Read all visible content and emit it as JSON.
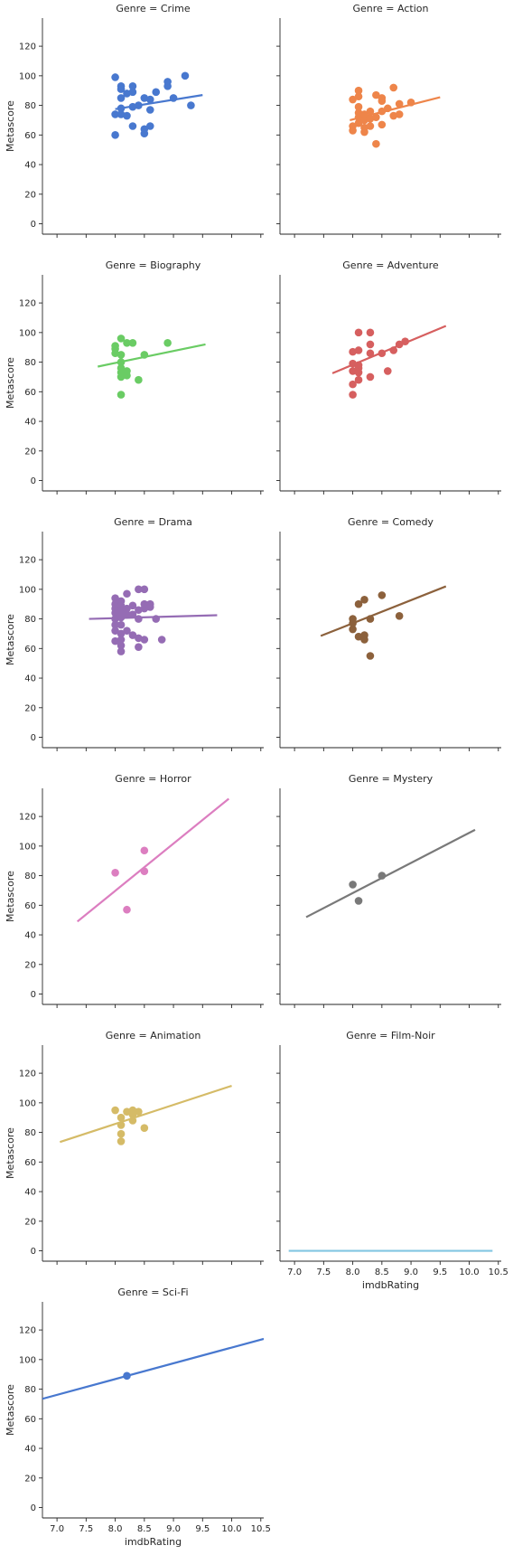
{
  "chart_data": {
    "type": "scatter",
    "title": "",
    "xlabel": "imdbRating",
    "ylabel": "Metascore",
    "xlim": [
      6.75,
      10.55
    ],
    "ylim": [
      -7,
      139
    ],
    "xticks": [
      "7.0",
      "7.5",
      "8.0",
      "8.5",
      "9.0",
      "9.5",
      "10.0",
      "10.5"
    ],
    "yticks": [
      "0",
      "20",
      "40",
      "60",
      "80",
      "100",
      "120"
    ],
    "grid": false,
    "panels": [
      {
        "title": "Genre = Crime",
        "genre": "Crime",
        "color": "#4878cf",
        "points": [
          [
            8.0,
            99
          ],
          [
            8.0,
            60
          ],
          [
            8.0,
            74
          ],
          [
            8.1,
            93
          ],
          [
            8.1,
            91
          ],
          [
            8.1,
            85
          ],
          [
            8.1,
            74
          ],
          [
            8.1,
            78
          ],
          [
            8.2,
            73
          ],
          [
            8.2,
            88
          ],
          [
            8.3,
            93
          ],
          [
            8.3,
            89
          ],
          [
            8.3,
            79
          ],
          [
            8.3,
            66
          ],
          [
            8.4,
            80
          ],
          [
            8.5,
            85
          ],
          [
            8.5,
            61
          ],
          [
            8.5,
            64
          ],
          [
            8.6,
            84
          ],
          [
            8.6,
            77
          ],
          [
            8.6,
            66
          ],
          [
            8.7,
            89
          ],
          [
            8.9,
            96
          ],
          [
            8.9,
            93
          ],
          [
            9.0,
            85
          ],
          [
            9.2,
            100
          ],
          [
            9.3,
            80
          ]
        ],
        "fit": [
          [
            8.0,
            77.5
          ],
          [
            9.5,
            87
          ]
        ]
      },
      {
        "title": "Genre = Action",
        "genre": "Action",
        "color": "#ee854a",
        "points": [
          [
            8.0,
            84
          ],
          [
            8.0,
            66
          ],
          [
            8.0,
            63
          ],
          [
            8.1,
            90
          ],
          [
            8.1,
            86
          ],
          [
            8.1,
            79
          ],
          [
            8.1,
            75
          ],
          [
            8.1,
            72
          ],
          [
            8.1,
            68
          ],
          [
            8.2,
            74
          ],
          [
            8.2,
            70
          ],
          [
            8.2,
            65
          ],
          [
            8.2,
            62
          ],
          [
            8.3,
            76
          ],
          [
            8.3,
            71
          ],
          [
            8.3,
            66
          ],
          [
            8.4,
            87
          ],
          [
            8.4,
            72
          ],
          [
            8.4,
            54
          ],
          [
            8.5,
            85
          ],
          [
            8.5,
            83
          ],
          [
            8.5,
            76
          ],
          [
            8.5,
            67
          ],
          [
            8.6,
            78
          ],
          [
            8.7,
            92
          ],
          [
            8.7,
            73
          ],
          [
            8.8,
            81
          ],
          [
            8.8,
            74
          ],
          [
            9.0,
            82
          ]
        ],
        "fit": [
          [
            7.95,
            70
          ],
          [
            9.5,
            85.5
          ]
        ]
      },
      {
        "title": "Genre = Biography",
        "genre": "Biography",
        "color": "#6acc64",
        "points": [
          [
            8.0,
            91
          ],
          [
            8.0,
            89
          ],
          [
            8.0,
            86
          ],
          [
            8.1,
            96
          ],
          [
            8.1,
            85
          ],
          [
            8.1,
            80
          ],
          [
            8.1,
            76
          ],
          [
            8.1,
            73
          ],
          [
            8.1,
            70
          ],
          [
            8.1,
            58
          ],
          [
            8.2,
            93
          ],
          [
            8.2,
            74
          ],
          [
            8.2,
            71
          ],
          [
            8.3,
            93
          ],
          [
            8.4,
            68
          ],
          [
            8.5,
            85
          ],
          [
            8.9,
            93
          ]
        ],
        "fit": [
          [
            7.7,
            77
          ],
          [
            9.55,
            92
          ]
        ]
      },
      {
        "title": "Genre = Adventure",
        "genre": "Adventure",
        "color": "#d65f5f",
        "points": [
          [
            8.0,
            87
          ],
          [
            8.0,
            79
          ],
          [
            8.0,
            74
          ],
          [
            8.0,
            65
          ],
          [
            8.0,
            58
          ],
          [
            8.1,
            100
          ],
          [
            8.1,
            88
          ],
          [
            8.1,
            78
          ],
          [
            8.1,
            76
          ],
          [
            8.1,
            73
          ],
          [
            8.1,
            68
          ],
          [
            8.3,
            100
          ],
          [
            8.3,
            92
          ],
          [
            8.3,
            86
          ],
          [
            8.3,
            70
          ],
          [
            8.5,
            86
          ],
          [
            8.6,
            74
          ],
          [
            8.7,
            88
          ],
          [
            8.8,
            92
          ],
          [
            8.9,
            94
          ]
        ],
        "fit": [
          [
            7.65,
            72.5
          ],
          [
            9.6,
            104.5
          ]
        ]
      },
      {
        "title": "Genre = Drama",
        "genre": "Drama",
        "color": "#956cb4",
        "points": [
          [
            8.0,
            94
          ],
          [
            8.0,
            90
          ],
          [
            8.0,
            87
          ],
          [
            8.0,
            84
          ],
          [
            8.0,
            80
          ],
          [
            8.0,
            76
          ],
          [
            8.0,
            72
          ],
          [
            8.0,
            65
          ],
          [
            8.1,
            92
          ],
          [
            8.1,
            89
          ],
          [
            8.1,
            85
          ],
          [
            8.1,
            81
          ],
          [
            8.1,
            76
          ],
          [
            8.1,
            70
          ],
          [
            8.1,
            66
          ],
          [
            8.1,
            62
          ],
          [
            8.1,
            58
          ],
          [
            8.2,
            97
          ],
          [
            8.2,
            87
          ],
          [
            8.2,
            83
          ],
          [
            8.2,
            72
          ],
          [
            8.3,
            89
          ],
          [
            8.3,
            83
          ],
          [
            8.3,
            69
          ],
          [
            8.4,
            100
          ],
          [
            8.4,
            86
          ],
          [
            8.4,
            80
          ],
          [
            8.4,
            67
          ],
          [
            8.4,
            61
          ],
          [
            8.5,
            100
          ],
          [
            8.5,
            90
          ],
          [
            8.5,
            87
          ],
          [
            8.5,
            66
          ],
          [
            8.6,
            90
          ],
          [
            8.6,
            88
          ],
          [
            8.7,
            80
          ],
          [
            8.8,
            66
          ]
        ],
        "fit": [
          [
            7.55,
            80
          ],
          [
            9.75,
            82.5
          ]
        ]
      },
      {
        "title": "Genre = Comedy",
        "genre": "Comedy",
        "color": "#8c613c",
        "points": [
          [
            8.0,
            80
          ],
          [
            8.0,
            77
          ],
          [
            8.0,
            73
          ],
          [
            8.1,
            90
          ],
          [
            8.1,
            68
          ],
          [
            8.2,
            93
          ],
          [
            8.2,
            69
          ],
          [
            8.2,
            66
          ],
          [
            8.3,
            80
          ],
          [
            8.3,
            55
          ],
          [
            8.5,
            96
          ],
          [
            8.8,
            82
          ]
        ],
        "fit": [
          [
            7.45,
            68.5
          ],
          [
            9.6,
            102
          ]
        ]
      },
      {
        "title": "Genre = Horror",
        "genre": "Horror",
        "color": "#dc7ec0",
        "points": [
          [
            8.0,
            82
          ],
          [
            8.2,
            57
          ],
          [
            8.5,
            97
          ],
          [
            8.5,
            83
          ]
        ],
        "fit": [
          [
            7.35,
            49
          ],
          [
            9.95,
            132
          ]
        ]
      },
      {
        "title": "Genre = Mystery",
        "genre": "Mystery",
        "color": "#797979",
        "points": [
          [
            8.0,
            74
          ],
          [
            8.1,
            63
          ],
          [
            8.5,
            80
          ]
        ],
        "fit": [
          [
            7.2,
            52
          ],
          [
            10.1,
            111
          ]
        ]
      },
      {
        "title": "Genre = Animation",
        "genre": "Animation",
        "color": "#d5bb67",
        "points": [
          [
            8.0,
            95
          ],
          [
            8.1,
            90
          ],
          [
            8.1,
            85
          ],
          [
            8.1,
            79
          ],
          [
            8.1,
            74
          ],
          [
            8.2,
            94
          ],
          [
            8.3,
            95
          ],
          [
            8.3,
            92
          ],
          [
            8.3,
            88
          ],
          [
            8.4,
            94
          ],
          [
            8.5,
            83
          ]
        ],
        "fit": [
          [
            7.05,
            73.5
          ],
          [
            10.0,
            111.5
          ]
        ]
      },
      {
        "title": "Genre = Film-Noir",
        "genre": "Film-Noir",
        "color": "#82c6e2",
        "points": [],
        "fit": [
          [
            6.9,
            0
          ],
          [
            10.4,
            0
          ]
        ]
      },
      {
        "title": "Genre = Sci-Fi",
        "genre": "Sci-Fi",
        "color": "#4878cf",
        "points": [
          [
            8.2,
            89
          ]
        ],
        "fit": [
          [
            6.75,
            73.5
          ],
          [
            10.55,
            114
          ]
        ]
      }
    ]
  }
}
